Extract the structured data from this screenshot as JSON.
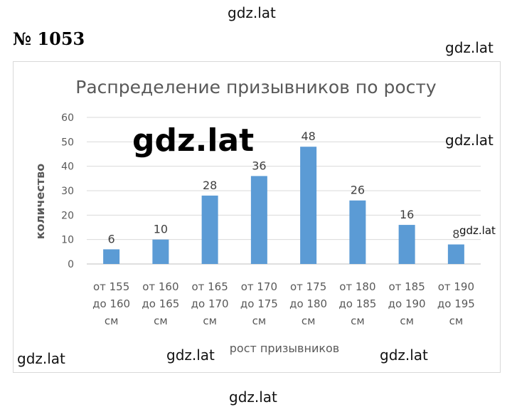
{
  "problem_number": "№ 1053",
  "watermarks": {
    "top": "gdz.lat",
    "right_top": "gdz.lat",
    "big": "gdz.lat",
    "right_mid": "gdz.lat",
    "small_bar": "gdz.lat",
    "bottom_left": "gdz.lat",
    "bottom_center_left": "gdz.lat",
    "bottom_center_right": "gdz.lat",
    "bottom": "gdz.lat"
  },
  "chart_data": {
    "type": "bar",
    "title": "Распределение призывников по росту",
    "xlabel": "рост призывников",
    "ylabel": "количество",
    "ylim": [
      0,
      60
    ],
    "yticks": [
      0,
      10,
      20,
      30,
      40,
      50,
      60
    ],
    "categories": [
      [
        "от 155",
        "до 160",
        "см"
      ],
      [
        "от 160",
        "до 165",
        "см"
      ],
      [
        "от 165",
        "до 170",
        "см"
      ],
      [
        "от 170",
        "до 175",
        "см"
      ],
      [
        "от 175",
        "до 180",
        "см"
      ],
      [
        "от 180",
        "до 185",
        "см"
      ],
      [
        "от 185",
        "до 190",
        "см"
      ],
      [
        "от 190",
        "до 195",
        "см"
      ]
    ],
    "values": [
      6,
      10,
      28,
      36,
      48,
      26,
      16,
      8
    ],
    "data_labels": [
      "6",
      "10",
      "28",
      "36",
      "48",
      "26",
      "16",
      "8"
    ],
    "bar_color": "#5b9bd5",
    "grid": true,
    "legend": "none"
  }
}
